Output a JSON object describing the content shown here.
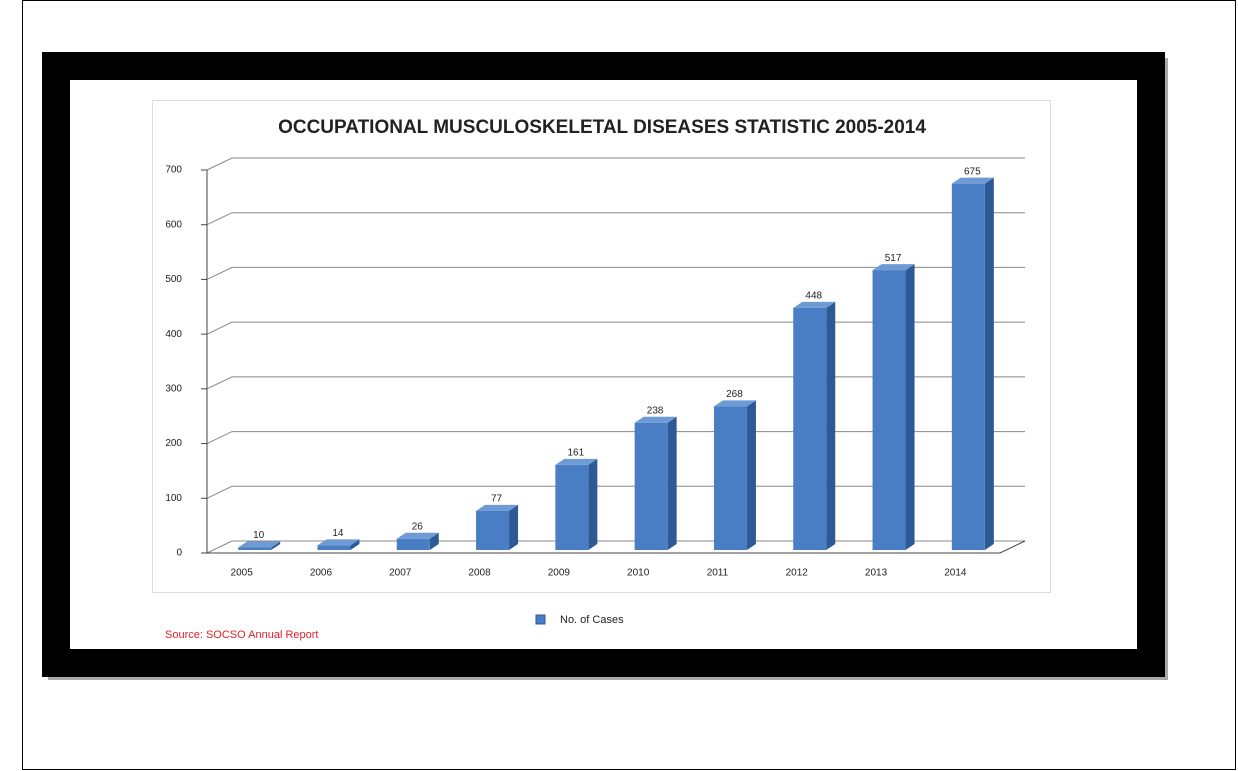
{
  "chart_data": {
    "type": "bar3d",
    "title": "OCCUPATIONAL MUSCULOSKELETAL DISEASES STATISTIC 2005-2014",
    "categories": [
      "2005",
      "2006",
      "2007",
      "2008",
      "2009",
      "2010",
      "2011",
      "2012",
      "2013",
      "2014"
    ],
    "series": [
      {
        "name": "No. of Cases",
        "color": "#4a7ec4",
        "values": [
          10,
          14,
          26,
          77,
          161,
          238,
          268,
          448,
          517,
          675
        ]
      }
    ],
    "ylim": [
      0,
      700
    ],
    "yticks": [
      0,
      100,
      200,
      300,
      400,
      500,
      600,
      700
    ],
    "grid": true,
    "legend": "bottom",
    "source": "Source: SOCSO Annual Report"
  }
}
